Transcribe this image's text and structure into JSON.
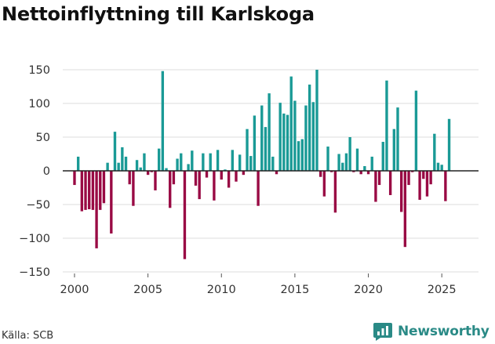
{
  "title": "Nettoinflyttning till Karlskoga",
  "source": "Källa: SCB",
  "brand": {
    "name": "Newsworthy",
    "icon": "newsworthy-logo-icon"
  },
  "colors": {
    "positive": "#1a9a96",
    "negative": "#990a44",
    "grid": "#dddddd",
    "zero_line": "#222222"
  },
  "chart_data": {
    "type": "bar",
    "title": "Nettoinflyttning till Karlskoga",
    "xlabel": "",
    "ylabel": "",
    "period": "month",
    "start": 2000.0,
    "step": 0.25,
    "xlim": [
      1999.2,
      2027.5
    ],
    "ylim": [
      -150,
      150
    ],
    "yticks": [
      -150,
      -100,
      -50,
      0,
      50,
      100,
      150
    ],
    "xticks": [
      2000,
      2005,
      2010,
      2015,
      2020,
      2025
    ],
    "grid": true,
    "values": [
      -21,
      21,
      -60,
      -58,
      -57,
      -58,
      -115,
      -58,
      -48,
      12,
      -93,
      58,
      12,
      35,
      21,
      -20,
      -52,
      16,
      5,
      26,
      -6,
      -2,
      -29,
      33,
      148,
      4,
      -55,
      -20,
      18,
      26,
      -131,
      10,
      30,
      -22,
      -42,
      26,
      -10,
      26,
      -44,
      31,
      -13,
      2,
      -25,
      31,
      -16,
      24,
      -6,
      62,
      22,
      82,
      -52,
      97,
      65,
      115,
      21,
      -5,
      101,
      85,
      83,
      140,
      104,
      44,
      47,
      97,
      128,
      102,
      150,
      -9,
      -38,
      36,
      -2,
      -62,
      25,
      12,
      26,
      50,
      -2,
      33,
      -5,
      7,
      -5,
      21,
      -46,
      -21,
      43,
      134,
      -36,
      62,
      94,
      -61,
      -113,
      -21,
      -2,
      119,
      -43,
      -12,
      -38,
      -20,
      55,
      12,
      9,
      -45,
      77
    ]
  }
}
